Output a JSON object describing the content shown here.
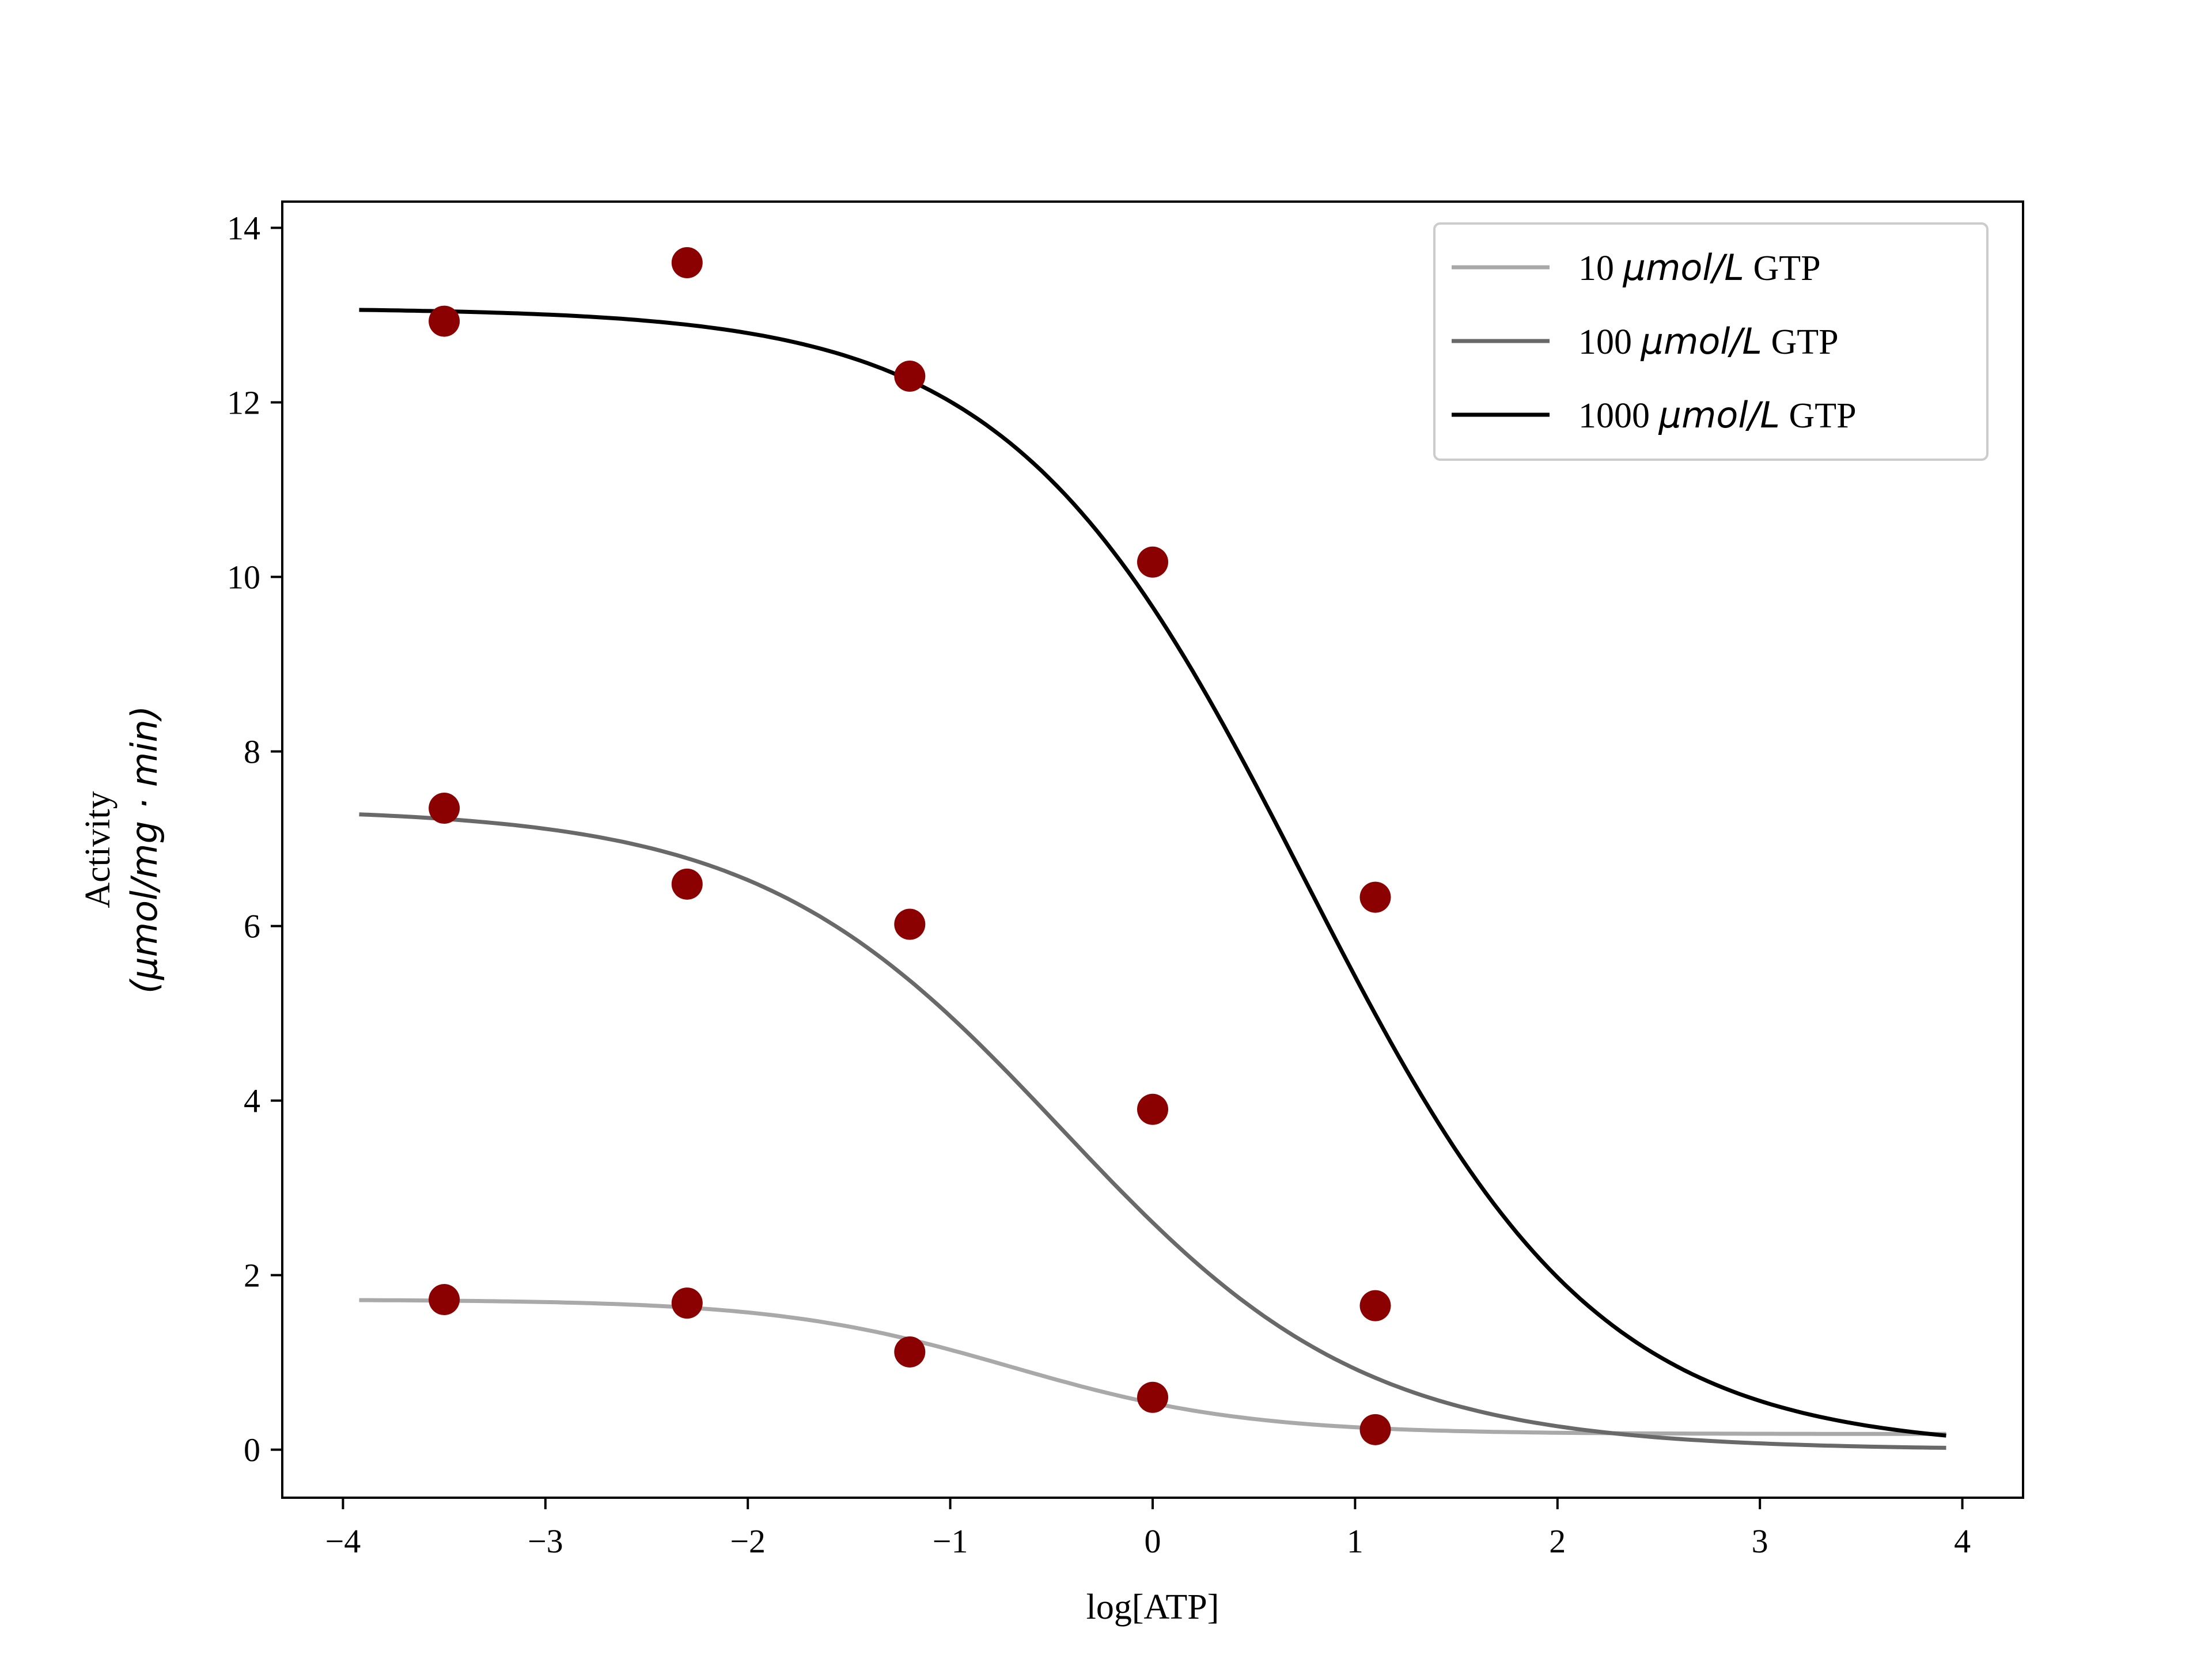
{
  "chart_data": {
    "type": "line",
    "xlabel": "log[ATP]",
    "ylabel_line1": "Activity",
    "ylabel_line2": "(μmol/mg · min)",
    "xlim": [
      -4.3,
      4.3
    ],
    "ylim": [
      -0.55,
      14.3
    ],
    "xticks": [
      -4,
      -3,
      -2,
      -1,
      0,
      1,
      2,
      3,
      4
    ],
    "xtick_labels": [
      "−4",
      "−3",
      "−2",
      "−1",
      "0",
      "1",
      "2",
      "3",
      "4"
    ],
    "yticks": [
      0,
      2,
      4,
      6,
      8,
      10,
      12,
      14
    ],
    "ytick_labels": [
      "0",
      "2",
      "4",
      "6",
      "8",
      "10",
      "12",
      "14"
    ],
    "grid": false,
    "legend_position": "top-right",
    "point_color": "#8b0000",
    "fit_range": [
      -3.92,
      3.92
    ],
    "series": [
      {
        "name_prefix": "10 ",
        "name_unit": "μmol/L",
        "name_suffix": " GTP",
        "color": "#a9a9a9",
        "fit": {
          "bottom": 0.18,
          "top": 1.72,
          "log_ec50": -0.7,
          "hill": 0.75
        },
        "points": [
          {
            "x": -3.5,
            "y": 1.72
          },
          {
            "x": -2.3,
            "y": 1.68
          },
          {
            "x": -1.2,
            "y": 1.12
          },
          {
            "x": 0.0,
            "y": 0.6
          },
          {
            "x": 1.1,
            "y": 0.23
          }
        ]
      },
      {
        "name_prefix": "100 ",
        "name_unit": "μmol/L",
        "name_suffix": " GTP",
        "color": "#696969",
        "fit": {
          "bottom": 0.0,
          "top": 7.35,
          "log_ec50": -0.45,
          "hill": 0.58
        },
        "points": [
          {
            "x": -3.5,
            "y": 7.35
          },
          {
            "x": -2.3,
            "y": 6.48
          },
          {
            "x": -1.2,
            "y": 6.02
          },
          {
            "x": 0.0,
            "y": 3.9
          },
          {
            "x": 1.1,
            "y": 1.65
          }
        ]
      },
      {
        "name_prefix": "1000 ",
        "name_unit": "μmol/L",
        "name_suffix": " GTP",
        "color": "#000000",
        "fit": {
          "bottom": 0.0,
          "top": 13.08,
          "log_ec50": 0.75,
          "hill": 0.6
        },
        "points": [
          {
            "x": -3.5,
            "y": 12.93
          },
          {
            "x": -2.3,
            "y": 13.6
          },
          {
            "x": -1.2,
            "y": 12.3
          },
          {
            "x": 0.0,
            "y": 10.17
          },
          {
            "x": 1.1,
            "y": 6.33
          }
        ]
      }
    ]
  }
}
